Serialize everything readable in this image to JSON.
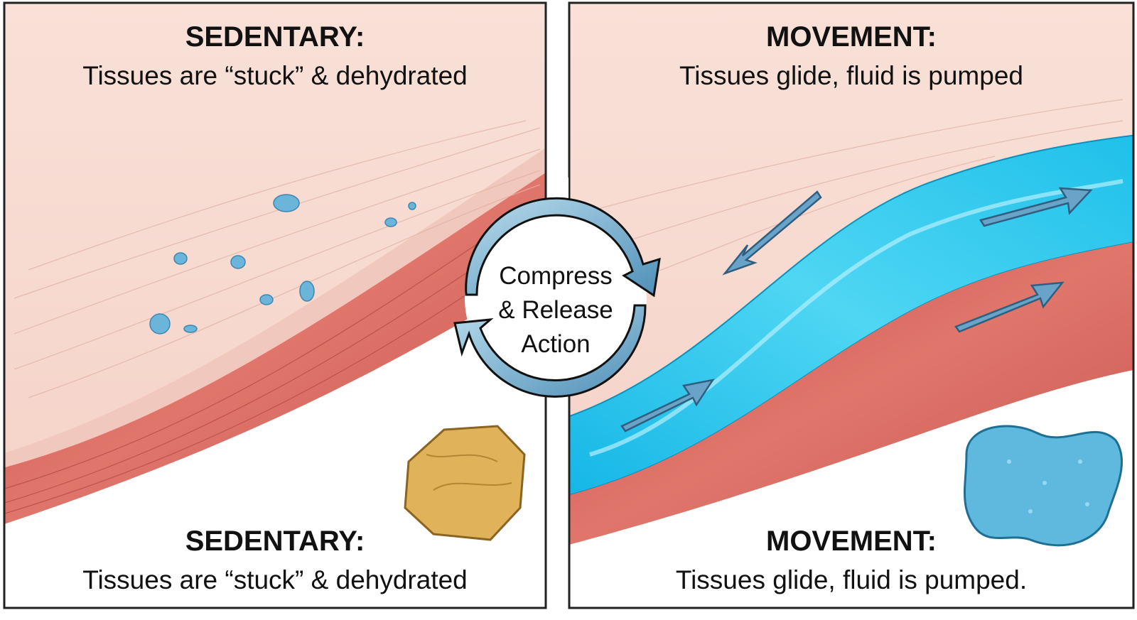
{
  "left_panel": {
    "top_title": "SEDENTARY:",
    "top_subtitle": "Tissues are “stuck” & dehydrated",
    "bottom_title": "SEDENTARY:",
    "bottom_subtitle": "Tissues are “stuck” & dehydrated",
    "icon": "dry-sponge-icon"
  },
  "right_panel": {
    "top_title": "MOVEMENT:",
    "top_subtitle": "Tissues glide, fluid is pumped",
    "bottom_title": "MOVEMENT:",
    "bottom_subtitle": "Tissues glide, fluid is pumped.",
    "icon": "wet-sponge-icon"
  },
  "center": {
    "lines": [
      "Compress",
      "& Release",
      "Action"
    ],
    "icon": "cycle-arrows-icon"
  },
  "colors": {
    "skin": "#f7dcd2",
    "muscle": "#d8645c",
    "fluid": "#2ec7ea",
    "arrow": "#6aa3c8",
    "dry_sponge": "#e0b35a",
    "wet_sponge": "#5fb9df"
  }
}
